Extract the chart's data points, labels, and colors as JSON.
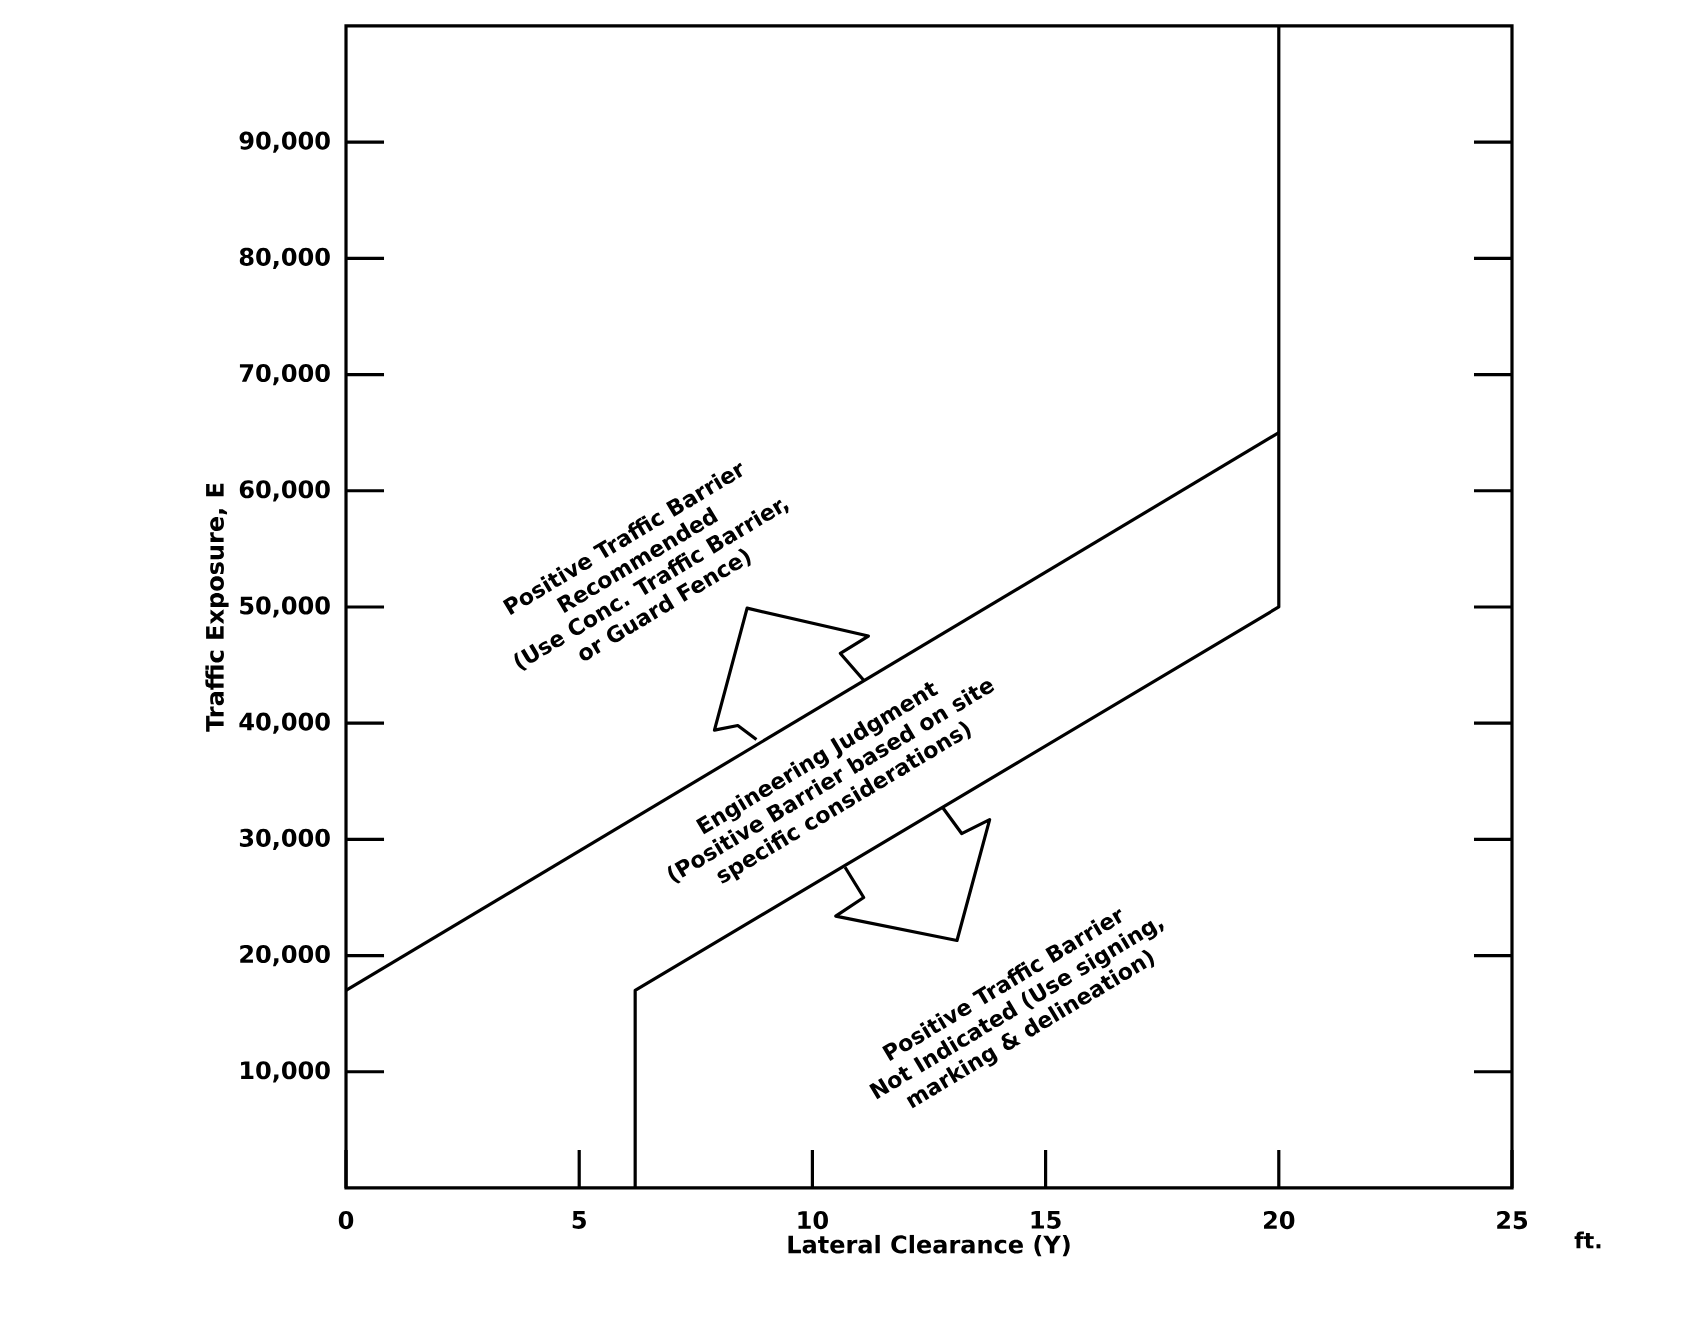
{
  "chart_data": {
    "type": "line",
    "xlabel": "Lateral Clearance (Y)",
    "ylabel": "Traffic Exposure, E",
    "xlim": [
      0,
      25
    ],
    "ylim": [
      0,
      100000
    ],
    "xticks": [
      0,
      5,
      10,
      15,
      20,
      25
    ],
    "yticks": [
      {
        "value": 10000,
        "label": "10,000"
      },
      {
        "value": 20000,
        "label": "20,000"
      },
      {
        "value": 30000,
        "label": "30,000"
      },
      {
        "value": 40000,
        "label": "40,000"
      },
      {
        "value": 50000,
        "label": "50,000"
      },
      {
        "value": 60000,
        "label": "60,000"
      },
      {
        "value": 70000,
        "label": "70,000"
      },
      {
        "value": 80000,
        "label": "80,000"
      },
      {
        "value": 90000,
        "label": "90,000"
      }
    ],
    "series": [
      {
        "color": "#000000",
        "x": [
          0,
          20
        ],
        "values": [
          17000,
          65000
        ]
      },
      {
        "color": "#000000",
        "x": [
          6.2,
          6.2,
          20,
          20
        ],
        "values": [
          0,
          17000,
          50000,
          100000
        ]
      }
    ],
    "grid": false,
    "marker": "none",
    "line_style": "solid",
    "annotations": [
      "ft.",
      "Positive Traffic Barrier\nRecommended\n(Use Conc. Traffic Barrier,\nor Guard Fence)",
      "Engineering Judgment\n(Positive Barrier based on site\nspecific considerations)",
      "Positive Traffic Barrier\nNot Indicated (Use signing,\nmarking & delineation)"
    ]
  }
}
